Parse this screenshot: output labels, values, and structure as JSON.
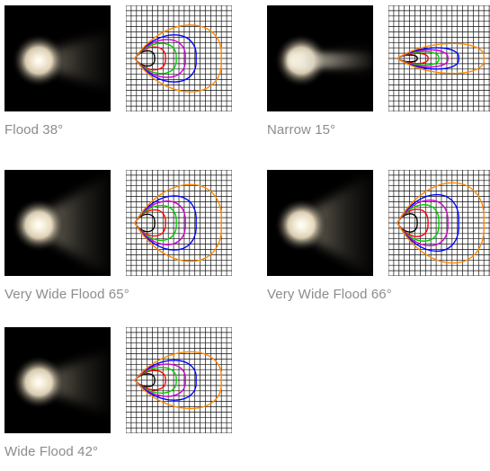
{
  "beams": [
    {
      "id": "flood-38",
      "label": "Flood 38°",
      "spread": 38
    },
    {
      "id": "narrow-15",
      "label": "Narrow 15°",
      "spread": 15
    },
    {
      "id": "vwflood-65",
      "label": "Very Wide Flood 65°",
      "spread": 65
    },
    {
      "id": "vwflood-66",
      "label": "Very Wide Flood 66°",
      "spread": 66
    },
    {
      "id": "wideflood-42",
      "label": "Wide Flood 42°",
      "spread": 42
    }
  ],
  "contour_colors": [
    "#000000",
    "#ff0000",
    "#00cc00",
    "#cc00cc",
    "#0000ff",
    "#ff8800"
  ]
}
